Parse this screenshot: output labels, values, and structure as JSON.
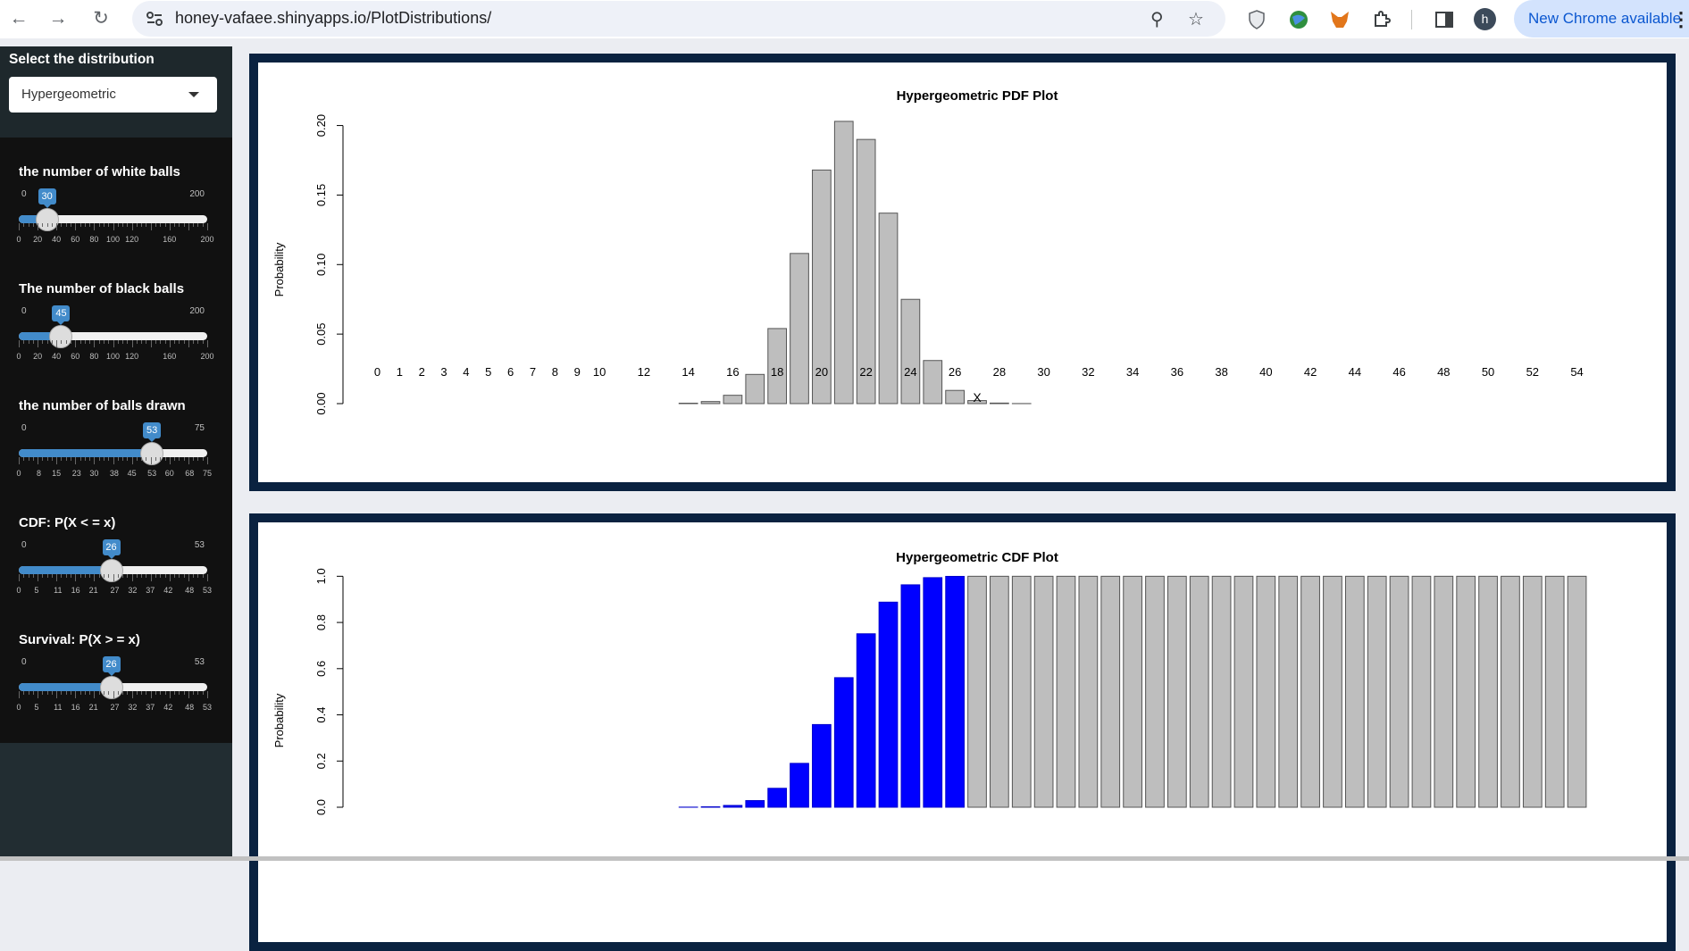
{
  "browser": {
    "url": "honey-vafaee.shinyapps.io/PlotDistributions/",
    "update_label": "New Chrome available",
    "profile_initial": "h"
  },
  "sidebar": {
    "distribution_label": "Select the distribution",
    "distribution_value": "Hypergeometric",
    "sliders": [
      {
        "label": "the number of white balls",
        "min": 0,
        "max": 200,
        "value": 30,
        "grid": [
          "0",
          "20",
          "40",
          "60",
          "80",
          "100",
          "120",
          "160",
          "200"
        ]
      },
      {
        "label": "The number of black balls",
        "min": 0,
        "max": 200,
        "value": 45,
        "grid": [
          "0",
          "20",
          "40",
          "60",
          "80",
          "100",
          "120",
          "160",
          "200"
        ]
      },
      {
        "label": "the number of balls drawn",
        "min": 0,
        "max": 75,
        "value": 53,
        "grid": [
          "0",
          "8",
          "15",
          "23",
          "30",
          "38",
          "45",
          "53",
          "60",
          "68",
          "75"
        ]
      },
      {
        "label": "CDF: P(X < = x)",
        "min": 0,
        "max": 53,
        "value": 26,
        "grid": [
          "0",
          "5",
          "11",
          "16",
          "21",
          "27",
          "32",
          "37",
          "42",
          "48",
          "53"
        ]
      },
      {
        "label": "Survival: P(X > = x)",
        "min": 0,
        "max": 53,
        "value": 26,
        "grid": [
          "0",
          "5",
          "11",
          "16",
          "21",
          "27",
          "32",
          "37",
          "42",
          "48",
          "53"
        ]
      }
    ]
  },
  "chart_data": [
    {
      "type": "bar",
      "title": "Hypergeometric PDF Plot",
      "xlabel": "X",
      "ylabel": "Probability",
      "ylim": [
        0,
        0.21
      ],
      "yticks": [
        "0.00",
        "0.05",
        "0.10",
        "0.15",
        "0.20"
      ],
      "xtick_labels": [
        "0",
        "1",
        "2",
        "3",
        "4",
        "5",
        "6",
        "7",
        "8",
        "9",
        "10",
        "12",
        "14",
        "16",
        "18",
        "20",
        "22",
        "24",
        "26",
        "28",
        "30",
        "32",
        "34",
        "36",
        "38",
        "40",
        "42",
        "44",
        "46",
        "48",
        "50",
        "52",
        "54"
      ],
      "categories": [
        "0",
        "1",
        "2",
        "3",
        "4",
        "5",
        "6",
        "7",
        "8",
        "9",
        "10",
        "11",
        "12",
        "13",
        "14",
        "15",
        "16",
        "17",
        "18",
        "19",
        "20",
        "21",
        "22",
        "23",
        "24",
        "25",
        "26",
        "27",
        "28",
        "29",
        "30",
        "31",
        "32",
        "33",
        "34",
        "35",
        "36",
        "37",
        "38",
        "39",
        "40",
        "41",
        "42",
        "43",
        "44",
        "45",
        "46",
        "47",
        "48",
        "49",
        "50",
        "51",
        "52",
        "53",
        "54"
      ],
      "values": [
        0,
        0,
        0,
        0,
        0,
        0,
        0,
        0,
        0,
        0,
        0,
        0,
        0,
        0,
        0.0003,
        0.0015,
        0.006,
        0.021,
        0.054,
        0.108,
        0.168,
        0.203,
        0.19,
        0.137,
        0.075,
        0.031,
        0.0095,
        0.0022,
        0.0004,
        5e-05,
        0,
        0,
        0,
        0,
        0,
        0,
        0,
        0,
        0,
        0,
        0,
        0,
        0,
        0,
        0,
        0,
        0,
        0,
        0,
        0,
        0,
        0,
        0,
        0,
        0
      ]
    },
    {
      "type": "bar",
      "title": "Hypergeometric CDF Plot",
      "xlabel": "",
      "ylabel": "Probability",
      "ylim": [
        0,
        1.04
      ],
      "yticks": [
        "0.0",
        "0.2",
        "0.4",
        "0.6",
        "0.8",
        "1.0"
      ],
      "highlight_max_x": 26,
      "colors": {
        "highlight": "#0000ff",
        "base": "#bebebe"
      },
      "categories": [
        "0",
        "1",
        "2",
        "3",
        "4",
        "5",
        "6",
        "7",
        "8",
        "9",
        "10",
        "11",
        "12",
        "13",
        "14",
        "15",
        "16",
        "17",
        "18",
        "19",
        "20",
        "21",
        "22",
        "23",
        "24",
        "25",
        "26",
        "27",
        "28",
        "29",
        "30",
        "31",
        "32",
        "33",
        "34",
        "35",
        "36",
        "37",
        "38",
        "39",
        "40",
        "41",
        "42",
        "43",
        "44",
        "45",
        "46",
        "47",
        "48",
        "49",
        "50",
        "51",
        "52",
        "53",
        "54"
      ],
      "values": [
        0,
        0,
        0,
        0,
        0,
        0,
        0,
        0,
        0,
        0,
        0,
        0,
        0,
        0,
        0.0004,
        0.0018,
        0.0078,
        0.0288,
        0.082,
        0.19,
        0.358,
        0.561,
        0.751,
        0.888,
        0.963,
        0.994,
        0.9995,
        1,
        1,
        1,
        1,
        1,
        1,
        1,
        1,
        1,
        1,
        1,
        1,
        1,
        1,
        1,
        1,
        1,
        1,
        1,
        1,
        1,
        1,
        1,
        1,
        1,
        1,
        1,
        1
      ]
    }
  ]
}
